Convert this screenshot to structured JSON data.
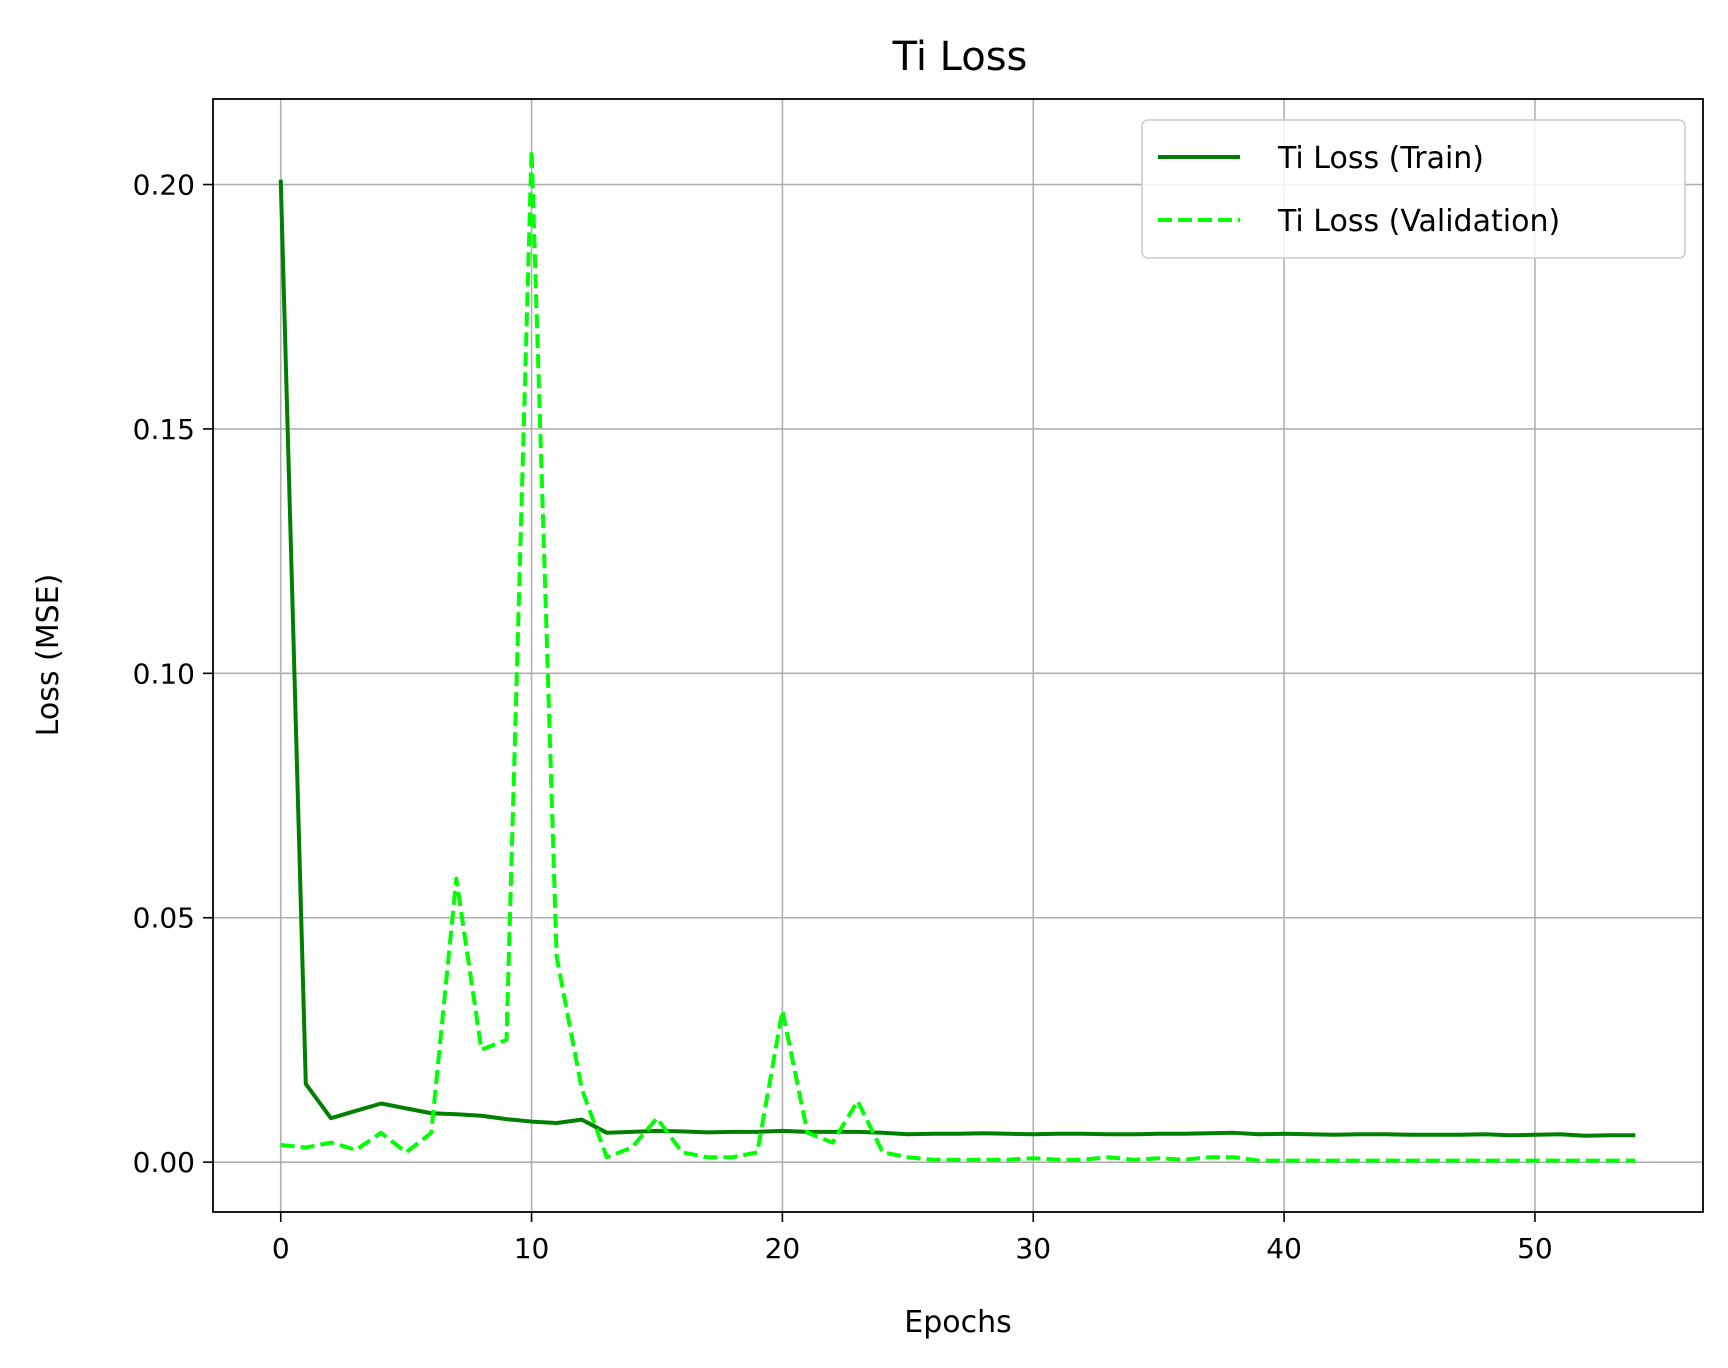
{
  "chart_data": {
    "type": "line",
    "title": "Ti Loss",
    "xlabel": "Epochs",
    "ylabel": "Loss (MSE)",
    "xlim": [
      -2.7,
      56.7
    ],
    "ylim": [
      -0.0102,
      0.2175
    ],
    "xticks": [
      0,
      10,
      20,
      30,
      40,
      50
    ],
    "xtick_labels": [
      "0",
      "10",
      "20",
      "30",
      "40",
      "50"
    ],
    "yticks": [
      0.0,
      0.05,
      0.1,
      0.15,
      0.2
    ],
    "ytick_labels": [
      "0.00",
      "0.05",
      "0.10",
      "0.15",
      "0.20"
    ],
    "grid": true,
    "legend_position": "top-right",
    "x": [
      0,
      1,
      2,
      3,
      4,
      5,
      6,
      7,
      8,
      9,
      10,
      11,
      12,
      13,
      14,
      15,
      16,
      17,
      18,
      19,
      20,
      21,
      22,
      23,
      24,
      25,
      26,
      27,
      28,
      29,
      30,
      31,
      32,
      33,
      34,
      35,
      36,
      37,
      38,
      39,
      40,
      41,
      42,
      43,
      44,
      45,
      46,
      47,
      48,
      49,
      50,
      51,
      52,
      53,
      54
    ],
    "series": [
      {
        "name": "Ti Loss (Train)",
        "color": "#008000",
        "style": "solid",
        "values": [
          0.201,
          0.016,
          0.009,
          0.0105,
          0.012,
          0.011,
          0.01,
          0.0098,
          0.0095,
          0.0088,
          0.0083,
          0.008,
          0.0087,
          0.006,
          0.0062,
          0.0064,
          0.0063,
          0.0061,
          0.0062,
          0.0062,
          0.0064,
          0.0062,
          0.0062,
          0.0062,
          0.006,
          0.0057,
          0.0058,
          0.0058,
          0.0059,
          0.0058,
          0.0057,
          0.0058,
          0.0058,
          0.0057,
          0.0057,
          0.0058,
          0.0058,
          0.0059,
          0.006,
          0.0057,
          0.0058,
          0.0057,
          0.0056,
          0.0057,
          0.0057,
          0.0056,
          0.0056,
          0.0056,
          0.0057,
          0.0055,
          0.0056,
          0.0057,
          0.0054,
          0.0055,
          0.0055
        ]
      },
      {
        "name": "Ti Loss (Validation)",
        "color": "#00ff00",
        "style": "dashed",
        "values": [
          0.0035,
          0.003,
          0.004,
          0.0025,
          0.006,
          0.002,
          0.006,
          0.058,
          0.023,
          0.025,
          0.207,
          0.042,
          0.015,
          0.001,
          0.003,
          0.009,
          0.002,
          0.001,
          0.001,
          0.002,
          0.031,
          0.006,
          0.004,
          0.0125,
          0.002,
          0.001,
          0.0005,
          0.0005,
          0.0005,
          0.0005,
          0.0008,
          0.0005,
          0.0005,
          0.001,
          0.0005,
          0.0008,
          0.0005,
          0.001,
          0.001,
          0.0003,
          0.0003,
          0.0003,
          0.0003,
          0.0003,
          0.0003,
          0.0003,
          0.0003,
          0.0003,
          0.0003,
          0.0003,
          0.0003,
          0.0003,
          0.0003,
          0.0003,
          0.0003
        ]
      }
    ]
  }
}
